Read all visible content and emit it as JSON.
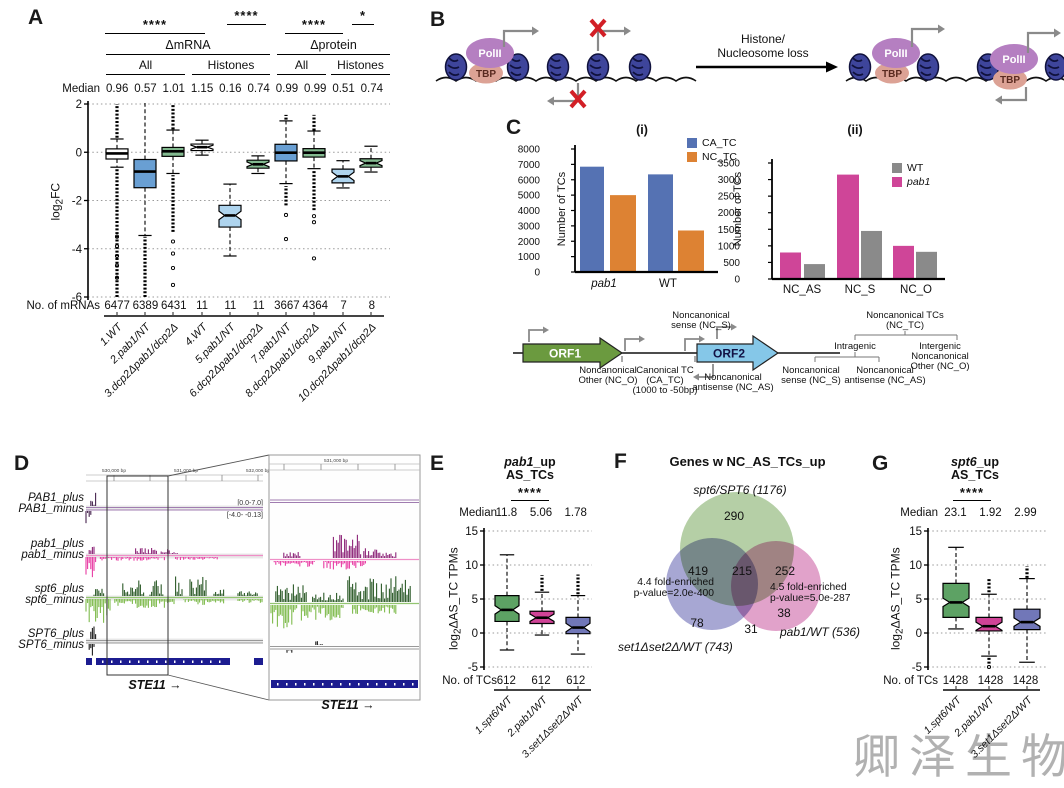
{
  "watermark_text": "卿泽生物",
  "panelA": {
    "label": "A",
    "sig": [
      "****",
      "****",
      "****",
      "*"
    ],
    "group1": "ΔmRNA",
    "group2": "Δprotein",
    "sub": [
      "All",
      "Histones",
      "All",
      "Histones"
    ],
    "median_label": "Median",
    "medians": [
      "0.96",
      "0.57",
      "1.01",
      "1.15",
      "0.16",
      "0.74",
      "0.99",
      "0.99",
      "0.51",
      "0.74"
    ],
    "ylabel_pre": "log",
    "ylabel_sub": "2",
    "ylabel_post": "FC",
    "n_label": "No. of mRNAs",
    "ns": [
      "6477",
      "6389",
      "6431",
      "11",
      "11",
      "11",
      "3667",
      "4364",
      "7",
      "8"
    ],
    "xlabels": [
      "1.WT",
      "2.pab1/NT",
      "3.dcp2Δpab1/dcp2Δ",
      "4.WT",
      "5.pab1/NT",
      "6.dcp2Δpab1/dcp2Δ",
      "7.pab1/NT",
      "8.dcp2Δpab1/dcp2Δ",
      "9.pab1/NT",
      "10.dcp2Δpab1/dcp2Δ"
    ]
  },
  "panelB": {
    "label": "B",
    "polii": "PolII",
    "tbp": "TBP",
    "arrow_line1": "Histone/",
    "arrow_line2": "Nucleosome loss"
  },
  "panelC": {
    "label": "C",
    "title1": "(i)",
    "title2": "(ii)",
    "ylabel": "Number of TCs",
    "legend1": [
      "CA_TC",
      "NC_TC"
    ],
    "legend2": [
      "WT",
      "pab1"
    ],
    "schematic": {
      "orf1": "ORF1",
      "orf2": "ORF2",
      "nc_s": [
        "Noncanonical",
        "sense (NC_S)"
      ],
      "nc_o": [
        "Noncanonical",
        "Other (NC_O)"
      ],
      "ca": [
        "Canonical TC",
        "(CA_TC)",
        "(1000 to -50bp)"
      ],
      "nc_as": [
        "Noncanonical",
        "antisense (NC_AS)"
      ],
      "tree_root": [
        "Noncanonical TCs",
        "(NC_TC)"
      ],
      "intragenic": "Intragenic",
      "intergenic": [
        "Intergenic",
        "Noncanonical",
        "Other (NC_O)"
      ],
      "leaf_s": [
        "Noncanonical",
        "sense (NC_S)"
      ],
      "leaf_as": [
        "Noncanonical",
        "antisense (NC_AS)"
      ]
    }
  },
  "panelD": {
    "label": "D",
    "tracks": [
      "PAB1_plus",
      "PAB1_minus",
      "pab1_plus",
      "pab1_minus",
      "spt6_plus",
      "spt6_minus",
      "SPT6_plus",
      "SPT6_minus"
    ],
    "range_left": [
      "[0.0-7.0]",
      "[-4.0- -0.13]"
    ],
    "range_right": [
      "[0.0-2.0]",
      "[-2.0- -0.13]"
    ],
    "ruler_left": [
      "530,000 bp",
      "531,000 bp",
      "532,000 bp"
    ],
    "ruler_right": [
      "531,000 bp"
    ],
    "gene_left": "STE11 →",
    "gene_right": "STE11 →"
  },
  "panelE": {
    "label": "E",
    "title_italic": "pab1",
    "title_rest": "_up",
    "title_line2": "AS_TCs",
    "sig": "****",
    "median_label": "Median",
    "medians": [
      "11.8",
      "5.06",
      "1.78"
    ],
    "ylabel_pre": "log",
    "ylabel_sub": "2",
    "ylabel_post": "ΔAS_TC TPMs",
    "n_label": "No. of TCs",
    "ns": [
      "612",
      "612",
      "612"
    ],
    "xlabels": [
      "1.spt6/WT",
      "2.pab1/WT",
      "3.set1Δset2Δ/WT"
    ]
  },
  "panelF": {
    "label": "F",
    "title": "Genes w NC_AS_TCs_up",
    "set_top": "spt6/SPT6 (1176)",
    "set_left": "set1Δset2Δ/WT (743)",
    "set_right": "pab1/WT (536)",
    "n_top": "290",
    "n_tl": "419",
    "n_center": "215",
    "n_tr": "252",
    "n_bl": "78",
    "n_bm": "31",
    "n_br": "38",
    "annot_left": [
      "4.4 fold-enriched",
      "p-value=2.0e-400"
    ],
    "annot_right": [
      "4.5 fold-enriched",
      "p-value=5.0e-287"
    ]
  },
  "panelG": {
    "label": "G",
    "title_italic": "spt6",
    "title_rest": "_up",
    "title_line2": "AS_TCs",
    "sig": "****",
    "median_label": "Median",
    "medians": [
      "23.1",
      "1.92",
      "2.99"
    ],
    "ylabel_pre": "log",
    "ylabel_sub": "2",
    "ylabel_post": "ΔAS_TC TPMs",
    "n_label": "No. of TCs",
    "ns": [
      "1428",
      "1428",
      "1428"
    ],
    "xlabels": [
      "1.spt6/WT",
      "2.pab1/WT",
      "3.set1Δset2Δ/WT"
    ]
  },
  "chart_data": [
    {
      "id": "A",
      "type": "boxplot",
      "title": "",
      "ylabel": "log2FC",
      "ylim": [
        -6,
        2
      ],
      "yticks": [
        2,
        0,
        -2,
        -4,
        -6
      ],
      "grid": true,
      "boxes": [
        {
          "label": "1.WT",
          "color": "#ffffff",
          "q1": -0.28,
          "q3": 0.14,
          "med": -0.05,
          "wlo": -0.62,
          "whi": 0.55,
          "notch": false,
          "outLo": [
            -6,
            -0.68
          ],
          "outHi": [
            0.6,
            2.0
          ],
          "dots": [
            -3.5,
            -3.9,
            -4.3,
            -4.7,
            -5.2
          ]
        },
        {
          "label": "2.pab1/NT",
          "color": "#699fd3",
          "q1": -1.47,
          "q3": -0.3,
          "med": -0.8,
          "wlo": -3.45,
          "whi": 2.05,
          "notch": false,
          "clipTop": true,
          "outLo": [
            -6,
            -3.5
          ]
        },
        {
          "label": "3.dcp2Δpab1/dcp2Δ",
          "color": "#83ba90",
          "q1": -0.17,
          "q3": 0.2,
          "med": 0.04,
          "wlo": -0.88,
          "whi": 0.92,
          "notch": false,
          "outLo": [
            -3.3,
            -0.95
          ],
          "outHi": [
            0.95,
            2.0
          ],
          "dots": [
            -3.7,
            -4.2,
            -4.8,
            -5.5
          ]
        },
        {
          "label": "4.WT",
          "color": "#ffffff",
          "q1": 0.07,
          "q3": 0.34,
          "med": 0.21,
          "wlo": -0.12,
          "whi": 0.5,
          "notch": true
        },
        {
          "label": "5.pab1/NT",
          "color": "#aed4ee",
          "q1": -3.1,
          "q3": -2.2,
          "med": -2.62,
          "wlo": -4.3,
          "whi": -1.32,
          "notch": true
        },
        {
          "label": "6.dcp2Δpab1/dcp2Δ",
          "color": "#83ba90",
          "q1": -0.66,
          "q3": -0.33,
          "med": -0.5,
          "wlo": -0.88,
          "whi": -0.15,
          "notch": true
        },
        {
          "label": "7.pab1/NT",
          "color": "#699fd3",
          "q1": -0.36,
          "q3": 0.33,
          "med": -0.02,
          "wlo": -1.3,
          "whi": 1.3,
          "notch": false,
          "outLo": [
            -2.2,
            -1.4
          ],
          "outHi": [
            1.35,
            1.55
          ],
          "dots": [
            -2.6,
            -3.6
          ]
        },
        {
          "label": "8.dcp2Δpab1/dcp2Δ",
          "color": "#83ba90",
          "q1": -0.2,
          "q3": 0.15,
          "med": -0.02,
          "wlo": -0.68,
          "whi": 0.88,
          "notch": false,
          "outLo": [
            -2.4,
            -0.75
          ],
          "outHi": [
            0.9,
            1.55
          ],
          "dots": [
            -2.65,
            -2.9,
            -4.4
          ]
        },
        {
          "label": "9.pab1/NT",
          "color": "#aed4ee",
          "q1": -1.27,
          "q3": -0.7,
          "med": -1.0,
          "wlo": -1.48,
          "whi": -0.35,
          "notch": true
        },
        {
          "label": "10.dcp2Δpab1/dcp2Δ",
          "color": "#83ba90",
          "q1": -0.62,
          "q3": -0.27,
          "med": -0.45,
          "wlo": -0.82,
          "whi": 0.25,
          "notch": true
        }
      ]
    },
    {
      "id": "C1",
      "type": "bar",
      "title": "(i)",
      "ylabel": "Number of TCs",
      "ylim": [
        0,
        8000
      ],
      "yticks": [
        0,
        1000,
        2000,
        3000,
        4000,
        5000,
        6000,
        7000,
        8000
      ],
      "categories": [
        "pab1",
        "WT"
      ],
      "series": [
        {
          "name": "CA_TC",
          "color": "#5572b3",
          "values": [
            6850,
            6350
          ]
        },
        {
          "name": "NC_TC",
          "color": "#dd8233",
          "values": [
            5000,
            2700
          ]
        }
      ],
      "legend_position": "top-right"
    },
    {
      "id": "C2",
      "type": "bar",
      "title": "(ii)",
      "ylabel": "Number of TCs",
      "ylim": [
        0,
        3500
      ],
      "yticks": [
        0,
        500,
        1000,
        1500,
        2000,
        2500,
        3000,
        3500
      ],
      "categories": [
        "NC_AS",
        "NC_S",
        "NC_O"
      ],
      "series": [
        {
          "name": "pab1",
          "color": "#cf4598",
          "values": [
            800,
            3150,
            1000
          ]
        },
        {
          "name": "WT",
          "color": "#8a8a8a",
          "values": [
            450,
            1450,
            820
          ]
        }
      ],
      "legend_order": [
        "WT",
        "pab1"
      ],
      "legend_position": "top-right"
    },
    {
      "id": "E",
      "type": "boxplot",
      "title": "pab1_up AS_TCs",
      "ylabel": "log2 ΔAS_TC TPMs",
      "ylim": [
        -5,
        15
      ],
      "yticks": [
        15,
        10,
        5,
        0,
        -5
      ],
      "grid": true,
      "medians_annotated": [
        11.8,
        5.06,
        1.78
      ],
      "n": [
        612,
        612,
        612
      ],
      "boxes": [
        {
          "label": "1.spt6/WT",
          "color": "#5da264",
          "q1": 1.7,
          "q3": 5.5,
          "med": 3.4,
          "wlo": -2.5,
          "whi": 11.5,
          "notch": true
        },
        {
          "label": "2.pab1/WT",
          "color": "#d04397",
          "q1": 1.4,
          "q3": 3.2,
          "med": 2.25,
          "wlo": -0.3,
          "whi": 6.0,
          "notch": true,
          "outHi": [
            6.2,
            8.5
          ]
        },
        {
          "label": "3.set1Δset2Δ/WT",
          "color": "#7177b8",
          "q1": -0.1,
          "q3": 2.3,
          "med": 0.8,
          "wlo": -3.1,
          "whi": 5.5,
          "notch": true,
          "outHi": [
            5.7,
            8.6
          ]
        }
      ]
    },
    {
      "id": "G",
      "type": "boxplot",
      "title": "spt6_up AS_TCs",
      "ylabel": "log2 ΔAS_TC TPMs",
      "ylim": [
        -5,
        15
      ],
      "yticks": [
        15,
        10,
        5,
        0,
        -5
      ],
      "grid": true,
      "medians_annotated": [
        23.1,
        1.92,
        2.99
      ],
      "n": [
        1428,
        1428,
        1428
      ],
      "boxes": [
        {
          "label": "1.spt6/WT",
          "color": "#5da264",
          "q1": 2.3,
          "q3": 7.3,
          "med": 4.5,
          "wlo": 0.6,
          "whi": 12.6,
          "notch": true
        },
        {
          "label": "2.pab1/WT",
          "color": "#d04397",
          "q1": 0.3,
          "q3": 2.3,
          "med": 1.0,
          "wlo": -3.4,
          "whi": 5.7,
          "notch": true,
          "outHi": [
            6.0,
            8.0
          ],
          "outLo": [
            -4.5,
            -3.5
          ],
          "dots": [
            -5.0
          ]
        },
        {
          "label": "3.set1Δset2Δ/WT",
          "color": "#7177b8",
          "q1": 0.5,
          "q3": 3.5,
          "med": 1.6,
          "wlo": -4.3,
          "whi": 8.0,
          "notch": true,
          "outHi": [
            8.1,
            9.8
          ]
        }
      ]
    },
    {
      "id": "F",
      "type": "venn",
      "title": "Genes w NC_AS_TCs_up",
      "sets": [
        {
          "name": "spt6/SPT6",
          "total": 1176,
          "color": "#79a85c"
        },
        {
          "name": "set1Δset2Δ/WT",
          "total": 743,
          "color": "#5f5fae"
        },
        {
          "name": "pab1/WT",
          "total": 536,
          "color": "#c8559f"
        }
      ],
      "regions": {
        "spt6_only": 290,
        "spt6_and_set": 419,
        "all_three": 215,
        "spt6_and_pab1": 252,
        "set_only": 78,
        "set_and_pab1": 31,
        "pab1_only": 38
      },
      "enrichment_left": {
        "fold": 4.4,
        "p_value": "2.0e-400"
      },
      "enrichment_right": {
        "fold": 4.5,
        "p_value": "5.0e-287"
      }
    }
  ]
}
